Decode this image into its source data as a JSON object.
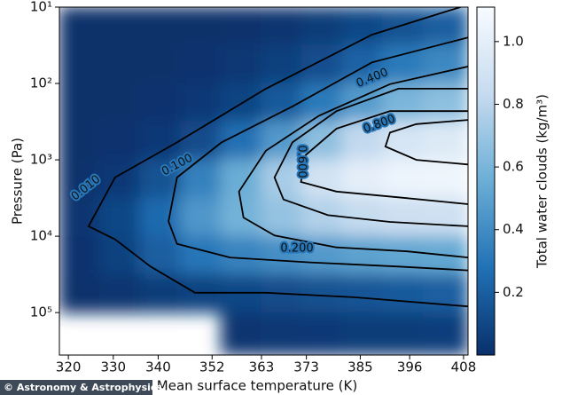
{
  "chart_data": {
    "type": "heatmap",
    "x_label": "Mean surface temperature (K)",
    "y_label": "Pressure (Pa)",
    "colorbar_label": "Total water clouds (kg/m³)",
    "credit": "© Astronomy & Astrophysics",
    "xlim": [
      318,
      409
    ],
    "xticks": [
      320,
      330,
      340,
      352,
      363,
      373,
      385,
      396,
      408
    ],
    "ylim": [
      360000,
      10
    ],
    "y_log": true,
    "yticks": [
      {
        "value": 10,
        "label": "10¹"
      },
      {
        "value": 100,
        "label": "10²"
      },
      {
        "value": 1000,
        "label": "10³"
      },
      {
        "value": 10000,
        "label": "10⁴"
      },
      {
        "value": 100000,
        "label": "10⁵"
      }
    ],
    "clim": [
      0,
      1.11
    ],
    "cticks": [
      0.2,
      0.4,
      0.6,
      0.8,
      {
        "value": 1,
        "label": "1.0"
      }
    ],
    "colormap": [
      "#08306b",
      "#2171b5",
      "#6baed6",
      "#c6dbef",
      "#f7fbff"
    ],
    "x_edges": [
      318,
      327,
      336,
      345,
      354,
      363,
      372,
      381,
      390,
      399,
      409
    ],
    "y_edges": [
      10,
      31.6,
      100,
      316,
      1000,
      3160,
      10000,
      31600,
      100000,
      360000
    ],
    "z": [
      [
        0.0,
        0.0,
        0.0,
        0.0,
        0.005,
        0.02,
        0.05,
        0.1,
        0.15,
        0.2
      ],
      [
        0.0,
        0.0,
        0.0,
        0.01,
        0.03,
        0.07,
        0.13,
        0.22,
        0.32,
        0.38
      ],
      [
        0.0,
        0.0,
        0.01,
        0.04,
        0.09,
        0.18,
        0.32,
        0.47,
        0.6,
        0.66
      ],
      [
        0.0,
        0.01,
        0.04,
        0.12,
        0.27,
        0.46,
        0.66,
        0.82,
        0.92,
        0.96
      ],
      [
        0.005,
        0.04,
        0.15,
        0.35,
        0.55,
        0.74,
        0.9,
        1.0,
        1.05,
        1.06
      ],
      [
        0.02,
        0.1,
        0.25,
        0.45,
        0.58,
        0.68,
        0.77,
        0.83,
        0.87,
        0.88
      ],
      [
        0.01,
        0.08,
        0.2,
        0.3,
        0.36,
        0.41,
        0.46,
        0.5,
        0.52,
        0.53
      ],
      [
        0.005,
        0.02,
        0.05,
        0.08,
        0.1,
        0.12,
        0.14,
        0.16,
        0.18,
        0.2
      ],
      [
        null,
        null,
        null,
        null,
        0.02,
        0.03,
        0.04,
        0.05,
        0.05,
        0.06
      ]
    ],
    "contours": [
      {
        "label": "0.010",
        "x": [
          407.3,
          387.6,
          364,
          344.2,
          330.4,
          324.5,
          330.4,
          338.3,
          348.2,
          364,
          383.7,
          409
        ],
        "y": [
          10,
          23,
          117,
          590,
          1700,
          7400,
          11000,
          25000,
          55000,
          55000,
          63000,
          83000
        ]
      },
      {
        "label": "0.100",
        "x": [
          409,
          387.6,
          369.9,
          354.1,
          344.2,
          342.3,
          344.2,
          356,
          373.8,
          393.5,
          409
        ],
        "y": [
          25,
          53,
          200,
          590,
          1700,
          6400,
          12600,
          19000,
          22000,
          25000,
          28000
        ]
      },
      {
        "label": "0.200",
        "x": [
          409,
          391.6,
          375.8,
          364,
          358,
          359,
          365.9,
          379.7,
          395.5,
          409
        ],
        "y": [
          60,
          102,
          265,
          760,
          2600,
          5700,
          9800,
          14000,
          15800,
          19000
        ]
      },
      {
        "label": "0.400",
        "x": [
          409,
          393.5,
          379.7,
          369.9,
          365.9,
          367.9,
          377.8,
          391.6,
          409
        ],
        "y": [
          117,
          117,
          230,
          590,
          1700,
          3300,
          5300,
          6500,
          7400
        ]
      },
      {
        "label": "0.600",
        "x": [
          409,
          391.6,
          379.7,
          372.8,
          371.8,
          379.7,
          393.5,
          409
        ],
        "y": [
          230,
          230,
          390,
          870,
          1950,
          2600,
          3100,
          3800
        ]
      },
      {
        "label": "0.800",
        "x": [
          409,
          397.5,
          391.6,
          390.6,
          397.5,
          409
        ],
        "y": [
          300,
          340,
          440,
          670,
          1000,
          1150
        ]
      }
    ]
  }
}
